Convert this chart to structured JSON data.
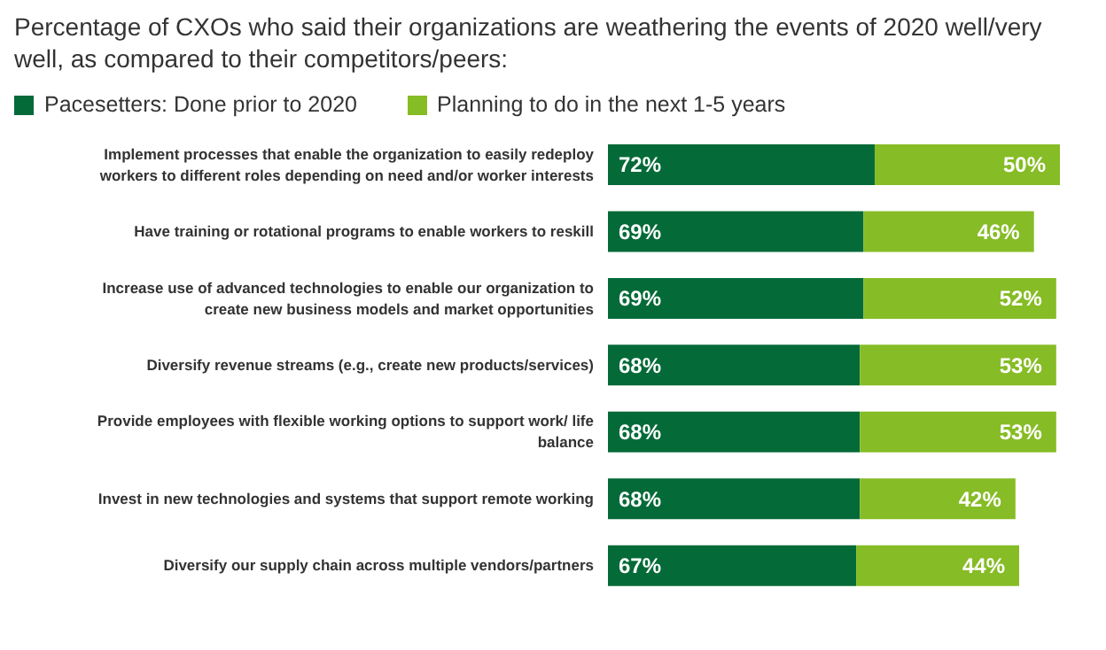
{
  "chart_data": {
    "type": "bar",
    "orientation": "horizontal",
    "stacked": true,
    "title": "Percentage of CXOs who said their organizations are weathering the events of 2020 well/very well, as compared to their competitors/peers:",
    "categories": [
      "Implement processes that enable the organization to easily redeploy workers to different roles depending on need and/or worker interests",
      "Have training or rotational programs to enable workers to reskill",
      "Increase use of advanced technologies to enable our organization to create new business models and market opportunities",
      "Diversify revenue streams (e.g., create new products/services)",
      "Provide employees with flexible working options to support work/ life balance",
      "Invest in new technologies and systems that support remote working",
      "Diversify our supply chain across multiple vendors/partners"
    ],
    "series": [
      {
        "name": "Pacesetters: Done prior to 2020",
        "color": "#046a38",
        "values": [
          72,
          69,
          69,
          68,
          68,
          68,
          67
        ],
        "value_labels": [
          "72%",
          "69%",
          "69%",
          "68%",
          "68%",
          "68%",
          "67%"
        ]
      },
      {
        "name": "Planning to do in the next 1-5 years",
        "color": "#86bc25",
        "values": [
          50,
          46,
          52,
          53,
          53,
          42,
          44
        ],
        "value_labels": [
          "50%",
          "46%",
          "52%",
          "53%",
          "53%",
          "42%",
          "44%"
        ]
      }
    ],
    "legend": "top left"
  }
}
